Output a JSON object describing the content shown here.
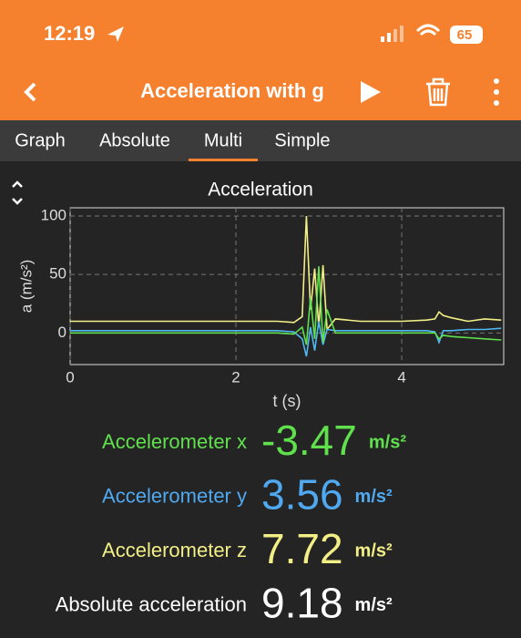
{
  "status_bar": {
    "time": "12:19",
    "battery": "65"
  },
  "header": {
    "title": "Acceleration with g"
  },
  "tabs": [
    "Graph",
    "Absolute",
    "Multi",
    "Simple"
  ],
  "chart_data": {
    "type": "line",
    "title": "Acceleration",
    "x_label": "t (s)",
    "y_label": "a (m/s²)",
    "x": [
      0,
      0.5,
      1,
      1.5,
      2,
      2.5,
      2.7,
      2.8,
      2.85,
      2.9,
      2.95,
      3.0,
      3.05,
      3.1,
      3.2,
      3.5,
      4,
      4.3,
      4.4,
      4.45,
      4.5,
      4.6,
      4.8,
      5,
      5.2
    ],
    "series": [
      {
        "color": "#f2ef86",
        "values": [
          10,
          10,
          10,
          10,
          10,
          10,
          9,
          14,
          100,
          20,
          55,
          5,
          58,
          3,
          12,
          10,
          10,
          11,
          12,
          18,
          15,
          13,
          10,
          12,
          11
        ]
      },
      {
        "color": "#4fb8f0",
        "values": [
          2,
          2,
          2,
          2,
          2,
          2,
          1,
          -5,
          -20,
          5,
          -15,
          10,
          -10,
          3,
          2,
          2,
          2,
          2,
          1,
          -8,
          2,
          2,
          3,
          3,
          4
        ]
      },
      {
        "color": "#5fe04c",
        "values": [
          0,
          0,
          0,
          0,
          0,
          0,
          -1,
          5,
          -10,
          30,
          -5,
          57,
          -8,
          20,
          0,
          0,
          0,
          0,
          0,
          -5,
          -2,
          -3,
          -4,
          -5,
          -6
        ]
      }
    ],
    "xlim": [
      0,
      5.23
    ],
    "ylim": [
      -27,
      107
    ],
    "xticks": [
      0,
      2,
      4
    ],
    "yticks": [
      0,
      50,
      100
    ],
    "grid": true
  },
  "readouts": [
    {
      "label": "Accelerometer x",
      "value": -3.47,
      "unit": "m/s²",
      "color": "#5fe04c"
    },
    {
      "label": "Accelerometer y",
      "value": 3.56,
      "unit": "m/s²",
      "color": "#4fa8f0"
    },
    {
      "label": "Accelerometer z",
      "value": 7.72,
      "unit": "m/s²",
      "color": "#f2ef86"
    },
    {
      "label": "Absolute acceleration",
      "value": 9.18,
      "unit": "m/s²",
      "color": "#ffffff"
    }
  ]
}
